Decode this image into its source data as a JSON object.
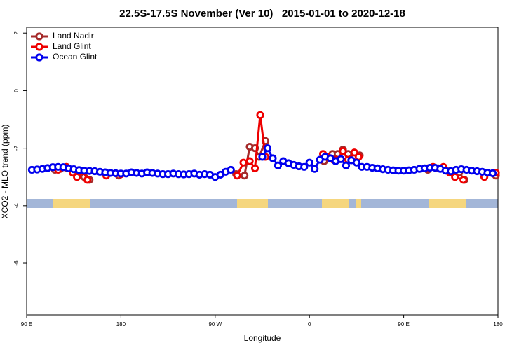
{
  "chart_data": {
    "type": "line",
    "title": "22.5S-17.5S November (Ver 10)   2015-01-01 to 2020-12-18",
    "xlabel": "Longitude",
    "ylabel": "XCO2 - MLO trend (ppm)",
    "xlim": [
      -270,
      180
    ],
    "ylim": [
      -7.8,
      2.2
    ],
    "xticks": [
      {
        "value": -270,
        "label": "90 E"
      },
      {
        "value": -180,
        "label": "180"
      },
      {
        "value": -90,
        "label": "90 W"
      },
      0,
      {
        "value": 90,
        "label": "90 E"
      },
      180
    ],
    "yticks": [
      2,
      0,
      -2,
      -4,
      -6
    ],
    "legend": "top-left",
    "series": [
      {
        "name": "Land Nadir",
        "color": "#a52a2a",
        "x": [
          -243,
          -238,
          -232,
          -220,
          -215,
          -210,
          null,
          -182,
          null,
          -70,
          -62,
          -57,
          -52,
          -48,
          -42,
          null,
          14,
          22,
          27,
          32,
          37,
          43,
          48,
          null,
          113,
          123,
          134,
          143,
          148,
          null,
          178
        ],
        "values": [
          -2.75,
          -2.72,
          -2.68,
          -2.85,
          -3.0,
          -3.1,
          null,
          -2.95,
          null,
          -2.9,
          -2.95,
          -1.95,
          -2.0,
          -2.3,
          -1.75,
          null,
          -2.45,
          -2.2,
          -2.2,
          -2.05,
          -2.2,
          -2.3,
          -2.25,
          null,
          -2.75,
          -2.7,
          -2.8,
          -2.85,
          -3.1,
          null,
          -2.95
        ]
      },
      {
        "name": "Land Glint",
        "color": "#ee0000",
        "x": [
          -240,
          -232,
          -226,
          -222,
          -216,
          -212,
          null,
          -194,
          -180,
          null,
          -69,
          -63,
          -57,
          -52,
          -47,
          -42,
          null,
          13,
          17,
          23,
          27,
          32,
          37,
          43,
          47,
          null,
          113,
          118,
          128,
          134,
          139,
          147,
          null,
          167,
          178
        ],
        "values": [
          -2.75,
          -2.65,
          -2.85,
          -3.0,
          -2.8,
          -3.1,
          null,
          -2.95,
          -2.9,
          null,
          -2.95,
          -2.5,
          -2.45,
          -2.7,
          -0.85,
          -2.3,
          null,
          -2.2,
          -2.3,
          -2.4,
          -2.4,
          -2.1,
          -2.4,
          -2.15,
          -2.3,
          null,
          -2.7,
          -2.65,
          -2.65,
          -2.85,
          -3.0,
          -3.1,
          null,
          -3.0,
          -2.85
        ]
      },
      {
        "name": "Ocean Glint",
        "color": "#0000ee",
        "x": [
          -265,
          -260,
          -255,
          -250,
          -245,
          -240,
          -235,
          -230,
          -225,
          -220,
          -215,
          -210,
          -205,
          -200,
          -195,
          -190,
          -185,
          -180,
          -175,
          -170,
          -165,
          -160,
          -155,
          -150,
          -145,
          -140,
          -135,
          -130,
          -125,
          -120,
          -115,
          -110,
          -105,
          -100,
          -95,
          -90,
          -85,
          -80,
          -75,
          -70,
          -65,
          -60,
          -55,
          -50,
          -45,
          -40,
          -35,
          -30,
          -25,
          -20,
          -15,
          -10,
          -5,
          0,
          5,
          10,
          15,
          20,
          25,
          30,
          35,
          40,
          45,
          50,
          55,
          60,
          65,
          70,
          75,
          80,
          85,
          90,
          95,
          100,
          105,
          110,
          115,
          120,
          125,
          130,
          135,
          140,
          145,
          150,
          155,
          160,
          165,
          170,
          175
        ],
        "values": [
          -2.75,
          -2.74,
          -2.72,
          -2.69,
          -2.66,
          -2.65,
          -2.66,
          -2.7,
          -2.73,
          -2.76,
          -2.78,
          -2.79,
          -2.8,
          -2.82,
          -2.84,
          -2.86,
          -2.87,
          -2.88,
          -2.88,
          -2.84,
          -2.86,
          -2.88,
          -2.84,
          -2.86,
          -2.88,
          -2.9,
          -2.9,
          -2.88,
          -2.9,
          -2.91,
          -2.9,
          -2.88,
          -2.92,
          -2.9,
          -2.92,
          -3.0,
          -2.92,
          -2.82,
          -2.75,
          null,
          null,
          null,
          null,
          null,
          -2.3,
          -2.0,
          -2.35,
          -2.6,
          -2.45,
          -2.52,
          -2.58,
          -2.63,
          -2.65,
          -2.5,
          -2.72,
          -2.4,
          -2.3,
          -2.35,
          -2.45,
          -2.38,
          -2.6,
          -2.42,
          -2.5,
          -2.65,
          -2.65,
          -2.68,
          -2.7,
          -2.73,
          -2.75,
          -2.77,
          -2.78,
          -2.78,
          -2.77,
          -2.75,
          -2.72,
          -2.7,
          -2.68,
          -2.68,
          -2.72,
          -2.78,
          -2.8,
          -2.75,
          -2.73,
          -2.75,
          -2.78,
          -2.8,
          -2.82,
          -2.85,
          -2.87
        ]
      }
    ]
  }
}
